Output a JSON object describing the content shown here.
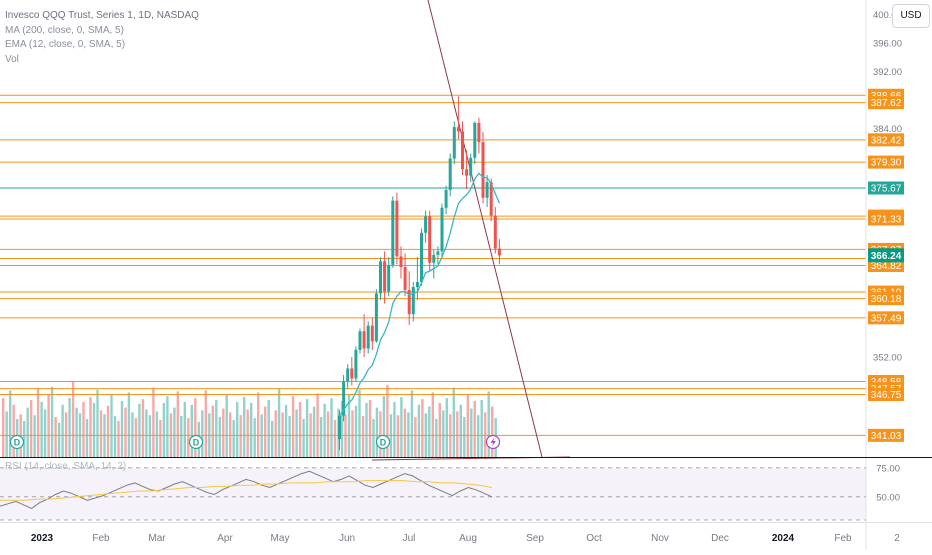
{
  "legend": {
    "title": "Invesco QQQ Trust, Series 1, 1D, NASDAQ",
    "ma": "MA (200, close, 0, SMA, 5)",
    "ema": "EMA (12, close, 0, SMA, 5)",
    "vol": "Vol"
  },
  "rsi_legend": "RSI (14, close, SMA, 14, 2)",
  "currency_button": "USD",
  "symbol_badge": "QQQ",
  "colors": {
    "orange": "#f7931a",
    "teal": "#26a69a",
    "up": "#26a69a",
    "down": "#ef5350",
    "trend": "#8b3a4a",
    "rsi_line": "#787b86",
    "rsi_ma": "#f7c844",
    "rsi_band": "#ede7f6"
  },
  "chart_data": {
    "type": "candlestick",
    "symbol": "QQQ",
    "timeframe": "1D",
    "price_axis": {
      "min": 338,
      "max": 402,
      "ticks": [
        "400.00",
        "396.00",
        "392.00",
        "384.00",
        "352.00"
      ]
    },
    "time_axis_labels": [
      "2023",
      "Feb",
      "Mar",
      "Apr",
      "May",
      "Jun",
      "Jul",
      "Aug",
      "Sep",
      "Oct",
      "Nov",
      "Dec",
      "2024",
      "Feb",
      "2"
    ],
    "last_price": 366.24,
    "horizontal_levels": [
      {
        "value": 388.66,
        "label": "388.66",
        "color": "orange"
      },
      {
        "value": 387.62,
        "label": "387.62",
        "color": "orange"
      },
      {
        "value": 382.42,
        "label": "382.42",
        "color": "orange"
      },
      {
        "value": 379.3,
        "label": "379.30",
        "color": "orange"
      },
      {
        "value": 375.67,
        "label": "375.67",
        "color": "teal"
      },
      {
        "value": 371.74,
        "label": "371.74",
        "color": "orange"
      },
      {
        "value": 371.33,
        "label": "371.33",
        "color": "orange"
      },
      {
        "value": 367.07,
        "label": "367.07",
        "color": "orange"
      },
      {
        "value": 365.79,
        "label": "365.79",
        "color": "orange"
      },
      {
        "value": 364.82,
        "label": "364.82",
        "color": "orange"
      },
      {
        "value": 361.1,
        "label": "361.10",
        "color": "orange"
      },
      {
        "value": 360.18,
        "label": "360.18",
        "color": "orange"
      },
      {
        "value": 357.49,
        "label": "357.49",
        "color": "orange"
      },
      {
        "value": 348.58,
        "label": "348.58",
        "color": "orange"
      },
      {
        "value": 347.57,
        "label": "347.57",
        "color": "orange"
      },
      {
        "value": 346.75,
        "label": "346.75",
        "color": "orange"
      },
      {
        "value": 341.03,
        "label": "341.03",
        "color": "orange"
      }
    ],
    "candles": [
      [
        340.5,
        344.5,
        339.0,
        343.8
      ],
      [
        343.8,
        349.5,
        343.0,
        348.6
      ],
      [
        348.6,
        351.0,
        347.5,
        350.4
      ],
      [
        350.4,
        352.0,
        348.0,
        349.0
      ],
      [
        349.0,
        353.5,
        348.5,
        353.0
      ],
      [
        353.0,
        356.0,
        352.5,
        355.6
      ],
      [
        355.6,
        358.0,
        352.0,
        353.2
      ],
      [
        353.2,
        357.0,
        352.5,
        356.4
      ],
      [
        356.4,
        357.5,
        353.0,
        354.2
      ],
      [
        354.2,
        361.5,
        354.0,
        360.9
      ],
      [
        360.9,
        366.0,
        360.0,
        365.4
      ],
      [
        365.4,
        366.8,
        359.5,
        361.2
      ],
      [
        361.2,
        366.0,
        360.5,
        364.9
      ],
      [
        364.9,
        374.5,
        364.5,
        373.9
      ],
      [
        373.9,
        375.0,
        365.0,
        366.1
      ],
      [
        366.1,
        367.5,
        363.0,
        364.6
      ],
      [
        364.6,
        366.5,
        360.5,
        361.4
      ],
      [
        361.4,
        364.0,
        356.5,
        358.0
      ],
      [
        358.0,
        362.5,
        357.0,
        361.8
      ],
      [
        361.8,
        366.0,
        360.0,
        362.5
      ],
      [
        362.5,
        370.0,
        362.0,
        369.4
      ],
      [
        369.4,
        372.5,
        368.0,
        371.7
      ],
      [
        371.7,
        372.5,
        364.0,
        365.2
      ],
      [
        365.2,
        367.0,
        363.0,
        366.3
      ],
      [
        366.3,
        367.5,
        365.0,
        366.8
      ],
      [
        366.8,
        373.5,
        366.0,
        372.9
      ],
      [
        372.9,
        376.0,
        372.0,
        375.4
      ],
      [
        375.4,
        380.5,
        374.5,
        379.8
      ],
      [
        379.8,
        385.0,
        379.0,
        384.2
      ],
      [
        384.2,
        388.5,
        382.5,
        383.6
      ],
      [
        383.6,
        385.0,
        377.5,
        378.3
      ],
      [
        378.3,
        381.0,
        375.5,
        377.4
      ],
      [
        377.4,
        380.5,
        376.5,
        379.9
      ],
      [
        379.9,
        385.0,
        379.0,
        384.8
      ],
      [
        384.8,
        385.5,
        380.5,
        382.1
      ],
      [
        382.1,
        383.5,
        373.5,
        374.3
      ],
      [
        374.3,
        377.5,
        373.0,
        376.5
      ],
      [
        376.5,
        377.0,
        371.0,
        371.8
      ],
      [
        371.8,
        373.0,
        366.5,
        367.2
      ],
      [
        367.2,
        368.5,
        365.0,
        366.24
      ]
    ],
    "volume": [
      62,
      48,
      70,
      55,
      40,
      45,
      38,
      52,
      60,
      44,
      72,
      58,
      50,
      66,
      74,
      42,
      36,
      55,
      47,
      62,
      80,
      52,
      46,
      58,
      40,
      63,
      57,
      71,
      49,
      45,
      54,
      66,
      43,
      38,
      59,
      52,
      68,
      47,
      41,
      56,
      61,
      50,
      44,
      73,
      48,
      39,
      57,
      64,
      46,
      52,
      69,
      43,
      58,
      41,
      55,
      62,
      37,
      49,
      70,
      46,
      54,
      60,
      42,
      51,
      66,
      47,
      39,
      58,
      44,
      63,
      50,
      57,
      41,
      68,
      45,
      53,
      60,
      38,
      49,
      72,
      47,
      55,
      43,
      64,
      50,
      58,
      40,
      61,
      46,
      53,
      67,
      42,
      56,
      48,
      62,
      39,
      51,
      59,
      45,
      66,
      49,
      54,
      71,
      43,
      57,
      60,
      40,
      52,
      48,
      64,
      76,
      45,
      58,
      44,
      63,
      51,
      47,
      70,
      42,
      55,
      61,
      46,
      53,
      68,
      40,
      57,
      49,
      62,
      45,
      73,
      48,
      55,
      42,
      66,
      51,
      59,
      44,
      60,
      47,
      69,
      53,
      41
    ],
    "trendlines": [
      {
        "from": [
          372,
          460
        ],
        "to": [
          570,
          457
        ]
      },
      {
        "from": [
          428,
          0
        ],
        "to": [
          542,
          457
        ]
      }
    ],
    "rsi_axis_ticks": [
      "75.00",
      "50.00"
    ],
    "rsi": [
      42,
      44,
      46,
      43,
      40,
      45,
      48,
      52,
      55,
      53,
      50,
      47,
      49,
      51,
      54,
      57,
      60,
      62,
      59,
      56,
      55,
      58,
      61,
      63,
      60,
      57,
      54,
      52,
      56,
      59,
      62,
      65,
      63,
      60,
      58,
      61,
      64,
      67,
      70,
      72,
      69,
      66,
      63,
      65,
      68,
      64,
      60,
      58,
      61,
      64,
      67,
      70,
      68,
      64,
      60,
      57,
      54,
      51,
      55,
      58,
      56,
      53,
      50
    ],
    "rsi_ma": [
      47,
      47,
      47,
      48,
      48,
      49,
      50,
      51,
      52,
      53,
      54,
      55,
      55,
      56,
      57,
      58,
      58,
      59,
      59,
      60,
      60,
      61,
      61,
      62,
      62,
      62,
      63,
      63,
      63,
      64,
      64,
      64,
      64,
      63,
      63,
      62,
      62,
      61,
      60,
      58
    ]
  }
}
